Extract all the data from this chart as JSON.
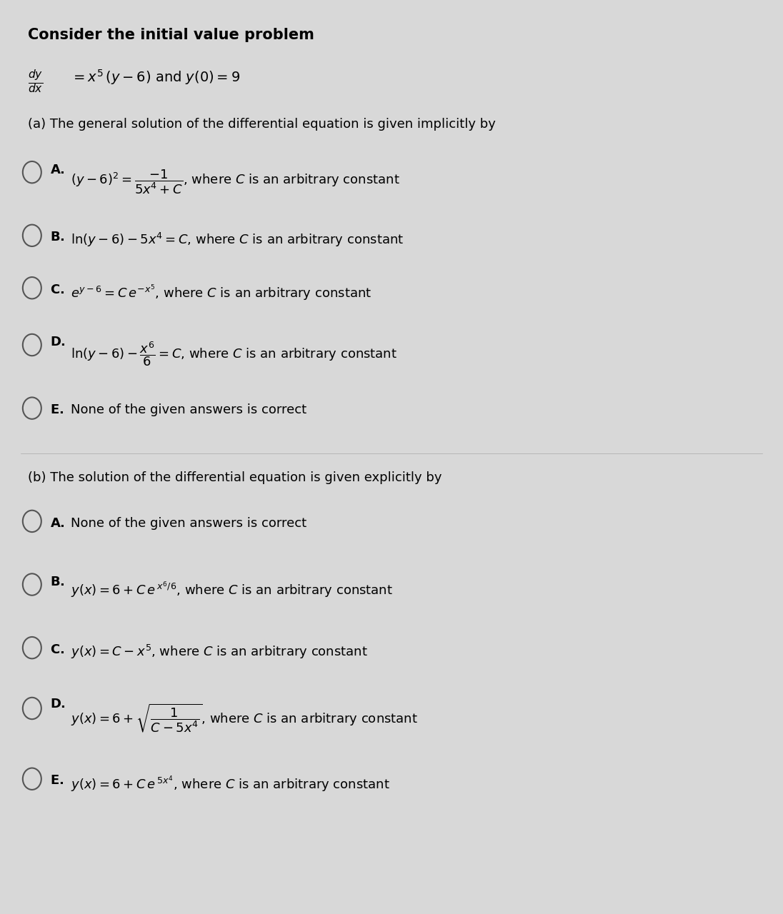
{
  "bg_color": "#d8d8d8",
  "content_bg": "#f0eeee",
  "text_color": "#000000",
  "title": "Consider the initial value problem",
  "ode_line1": "$\\dfrac{dy}{dx} = x^5\\,(y-6)$ and $y(0) = 9$",
  "part_a_header": "(a) The general solution of the differential equation is given implicitly by",
  "part_b_header": "(b) The solution of the differential equation is given explicitly by",
  "options_a": [
    {
      "label": "A.",
      "text": "$(y-6)^2 = \\dfrac{-1}{5x^4+C}$, where $C$ is an arbitrary constant"
    },
    {
      "label": "B.",
      "text": "$\\ln(y-6) - 5x^4 = C$, where $C$ is an arbitrary constant"
    },
    {
      "label": "C.",
      "text": "$e^{y-6} = C\\,e^{-x^5}$, where $C$ is an arbitrary constant"
    },
    {
      "label": "D.",
      "text": "$\\ln(y-6) - \\dfrac{x^6}{6} = C$, where $C$ is an arbitrary constant"
    },
    {
      "label": "E.",
      "text": "None of the given answers is correct"
    }
  ],
  "options_b": [
    {
      "label": "A.",
      "text": "None of the given answers is correct"
    },
    {
      "label": "B.",
      "text": "$y(x) = 6 + C\\,e^{\\,x^6/6}$, where $C$ is an arbitrary constant"
    },
    {
      "label": "C.",
      "text": "$y(x) = C - x^5$, where $C$ is an arbitrary constant"
    },
    {
      "label": "D.",
      "text": "$y(x) = 6 + \\sqrt{\\dfrac{1}{C-5x^4}}$, where $C$ is an arbitrary constant"
    },
    {
      "label": "E.",
      "text": "$y(x) = 6 + C\\,e^{\\,5x^4}$, where $C$ is an arbitrary constant"
    }
  ],
  "font_size_title": 15,
  "font_size_ode": 14,
  "font_size_header": 13,
  "font_size_option": 13
}
